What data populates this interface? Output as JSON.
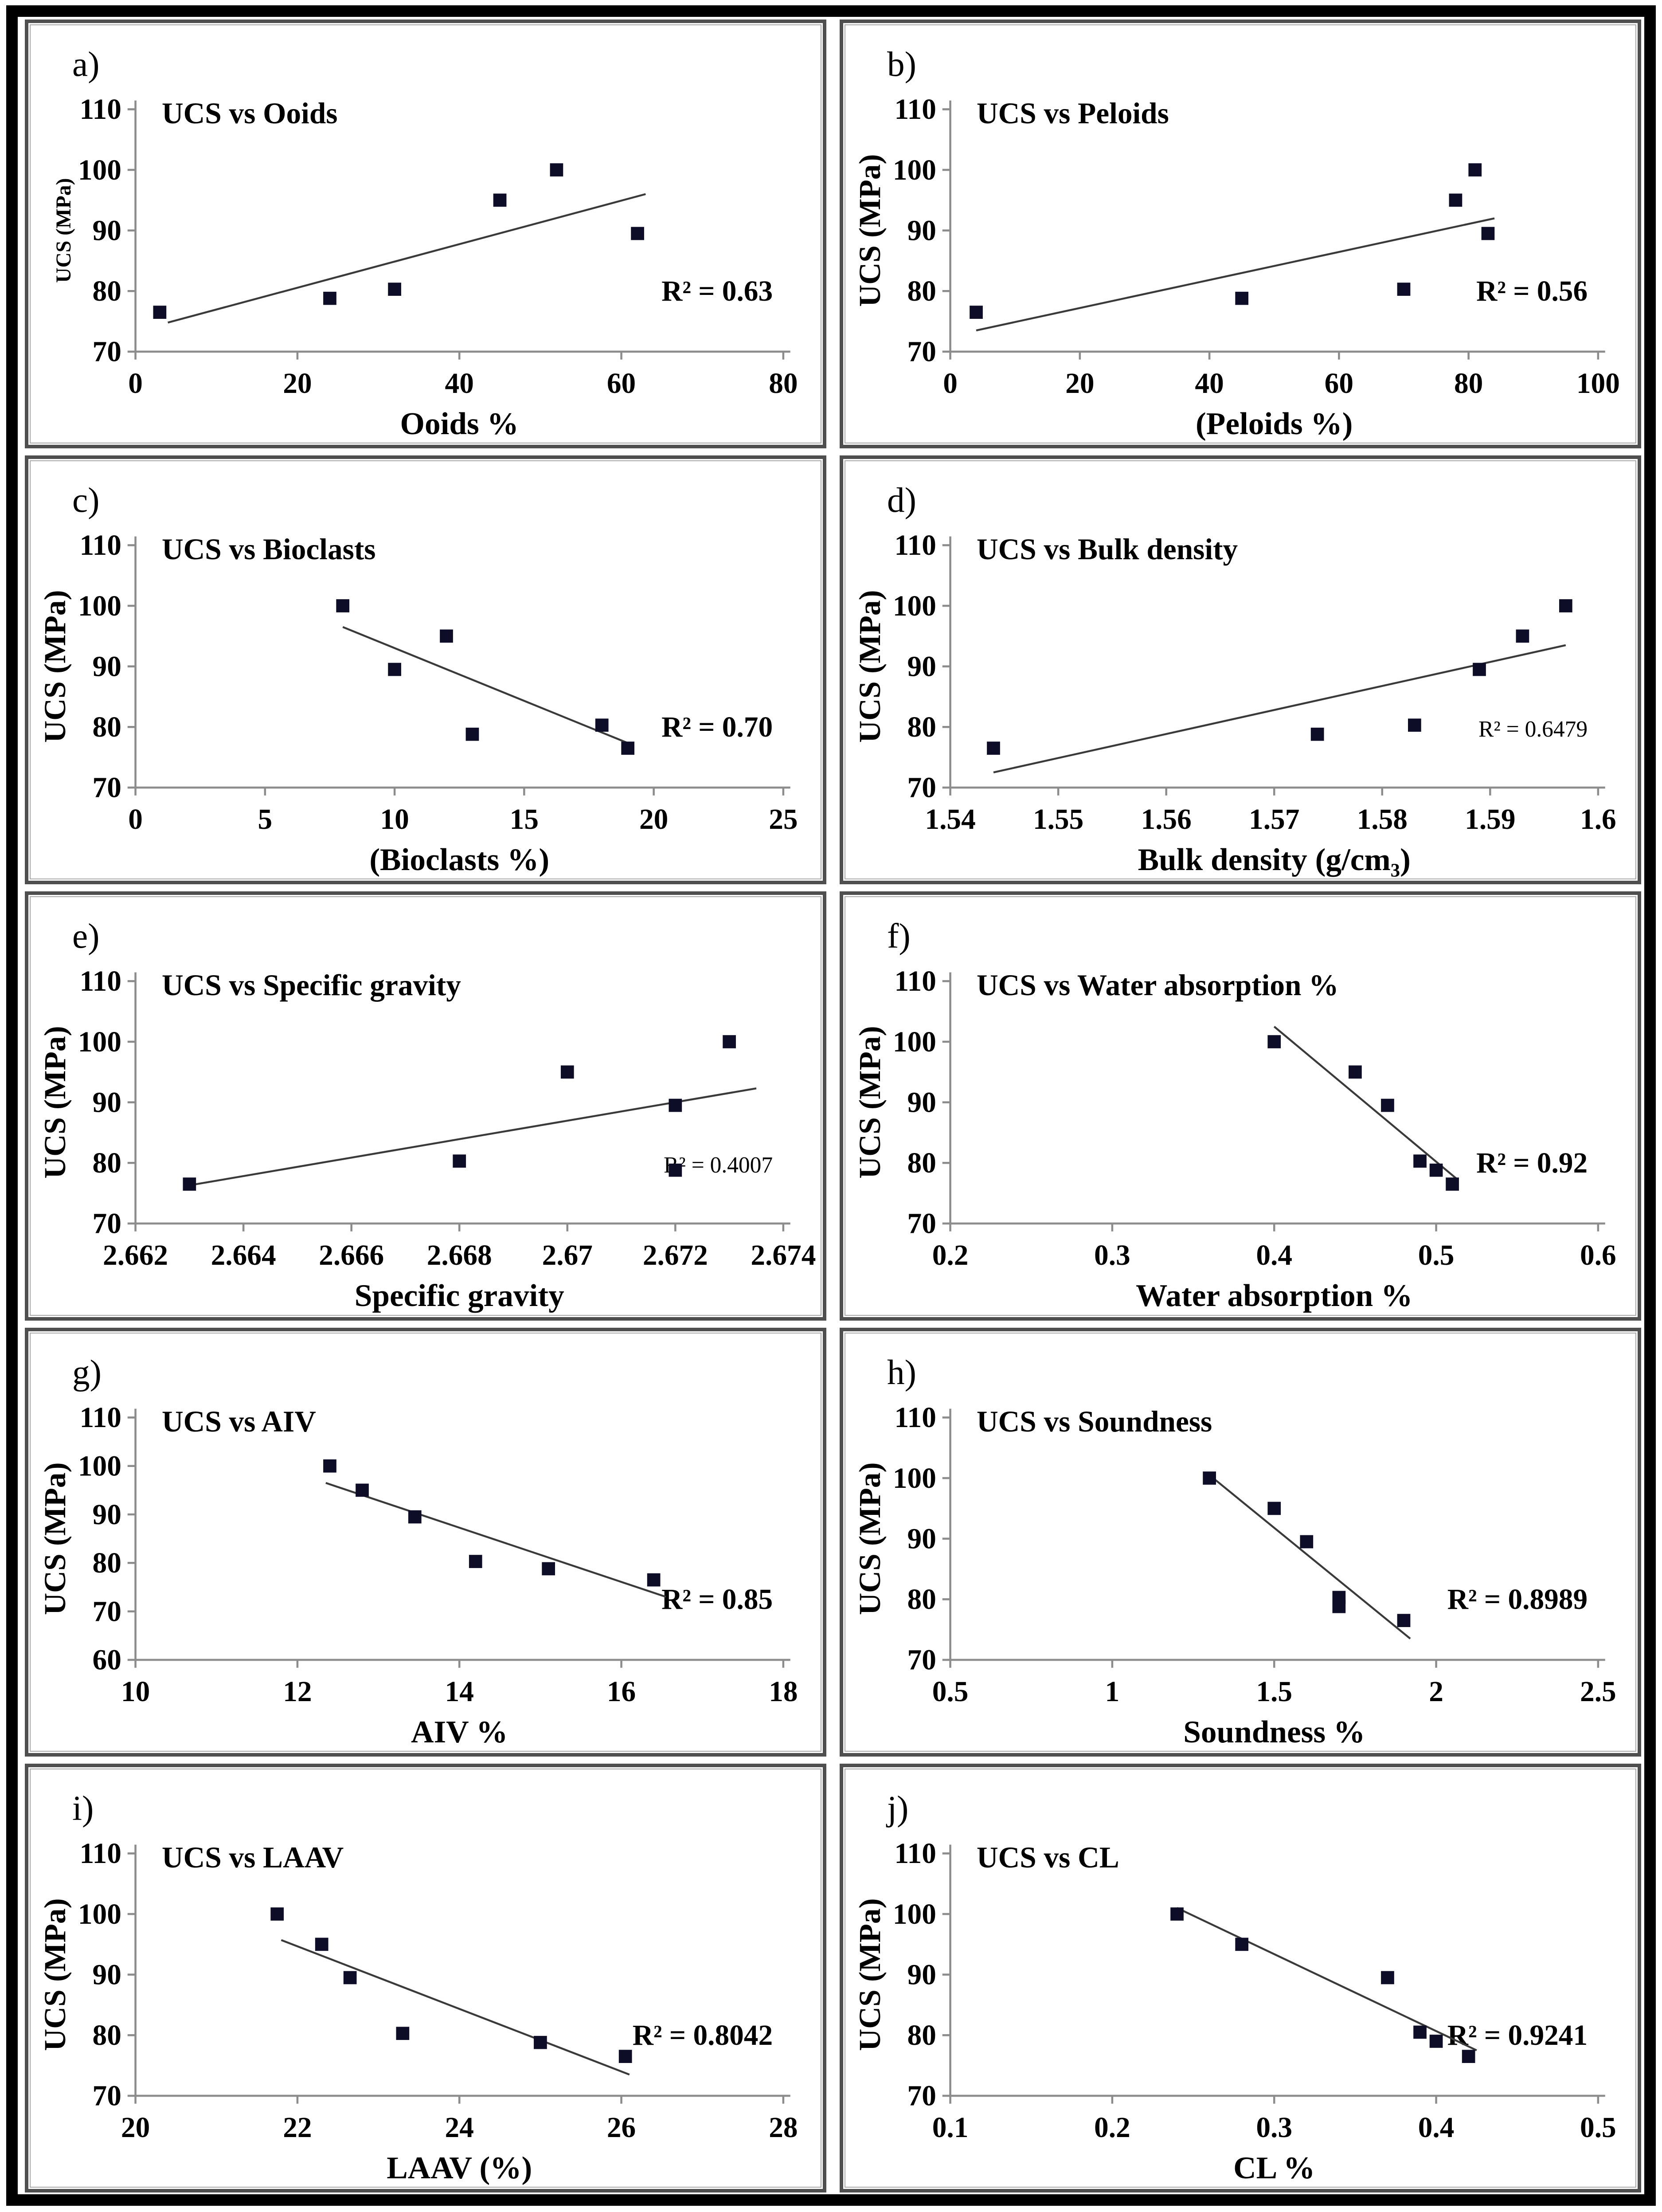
{
  "figure": {
    "description": "Correlation scatter plots of UCS versus petrographic and physico-mechanical properties",
    "outer_border_color": "#000000",
    "panel_border_color": "#4f4f4f",
    "background_color": "#ffffff"
  },
  "colors": {
    "point": "#0d0d28",
    "trendline": "#3a3a3a",
    "axis": "#8c8c8c",
    "text": "#000000"
  },
  "chart_data": [
    {
      "type": "scatter",
      "letter": "a)",
      "panel": "a",
      "title": "UCS vs Ooids",
      "xlabel": "Ooids %",
      "ylabel": "UCS (MPa)",
      "annotation": "R² = 0.63",
      "xlim": [
        0,
        80
      ],
      "xticks": [
        "0",
        "20",
        "40",
        "60",
        "80"
      ],
      "ylim": [
        70,
        110
      ],
      "yticks": [
        "70",
        "80",
        "90",
        "100",
        "110"
      ],
      "x": [
        3,
        24,
        32,
        45,
        52,
        62
      ],
      "y": [
        76.5,
        78.8,
        80.3,
        95,
        100,
        89.5
      ],
      "trendline": [
        4,
        74.8,
        63,
        96
      ],
      "grid": false,
      "legend": "none",
      "ylabel_small": true
    },
    {
      "type": "scatter",
      "letter": "b)",
      "panel": "b",
      "title": "UCS vs Peloids",
      "xlabel": "(Peloids %)",
      "ylabel": "UCS (MPa)",
      "annotation": "R² = 0.56",
      "xlim": [
        0,
        100
      ],
      "xticks": [
        "0",
        "20",
        "40",
        "60",
        "80",
        "100"
      ],
      "ylim": [
        70,
        110
      ],
      "yticks": [
        "70",
        "80",
        "90",
        "100",
        "110"
      ],
      "x": [
        4,
        45,
        70,
        78,
        81,
        83
      ],
      "y": [
        76.5,
        78.8,
        80.3,
        95,
        100,
        89.5
      ],
      "trendline": [
        4,
        73.5,
        84,
        92
      ],
      "grid": false,
      "legend": "none"
    },
    {
      "type": "scatter",
      "letter": "c)",
      "panel": "c",
      "title": "UCS vs Bioclasts",
      "xlabel": "(Bioclasts %)",
      "ylabel": "UCS (MPa)",
      "annotation": "R² = 0.70",
      "xlim": [
        0,
        25
      ],
      "xticks": [
        "0",
        "5",
        "10",
        "15",
        "20",
        "25"
      ],
      "ylim": [
        70,
        110
      ],
      "yticks": [
        "70",
        "80",
        "90",
        "100",
        "110"
      ],
      "x": [
        8,
        10,
        12,
        13,
        18,
        19
      ],
      "y": [
        100,
        89.5,
        95,
        78.8,
        80.3,
        76.5
      ],
      "trendline": [
        8,
        96.5,
        19.2,
        77
      ],
      "grid": false,
      "legend": "none"
    },
    {
      "type": "scatter",
      "letter": "d)",
      "panel": "d",
      "title": "UCS vs Bulk density",
      "xlabel": "Bulk density (g/cm₃)",
      "ylabel": "UCS (MPa)",
      "annotation": "R² = 0.6479",
      "xlim": [
        1.54,
        1.6
      ],
      "xticks": [
        "1.54",
        "1.55",
        "1.56",
        "1.57",
        "1.58",
        "1.59",
        "1.6"
      ],
      "ylim": [
        70,
        110
      ],
      "yticks": [
        "70",
        "80",
        "90",
        "100",
        "110"
      ],
      "x": [
        1.544,
        1.574,
        1.583,
        1.589,
        1.593,
        1.597
      ],
      "y": [
        76.5,
        78.8,
        80.3,
        89.5,
        95,
        100
      ],
      "trendline": [
        1.544,
        72.5,
        1.597,
        93.5
      ],
      "grid": false,
      "legend": "none",
      "r2_small": true
    },
    {
      "type": "scatter",
      "letter": "e)",
      "panel": "e",
      "title": "UCS vs Specific gravity",
      "xlabel": "Specific gravity",
      "ylabel": "UCS (MPa)",
      "annotation": "R² = 0.4007",
      "xlim": [
        2.662,
        2.674
      ],
      "xticks": [
        "2.662",
        "2.664",
        "2.666",
        "2.668",
        "2.67",
        "2.672",
        "2.674"
      ],
      "ylim": [
        70,
        110
      ],
      "yticks": [
        "70",
        "80",
        "90",
        "100",
        "110"
      ],
      "x": [
        2.663,
        2.668,
        2.67,
        2.672,
        2.672,
        2.673
      ],
      "y": [
        76.5,
        80.3,
        95,
        89.5,
        78.8,
        100
      ],
      "trendline": [
        2.663,
        76.3,
        2.6735,
        92.3
      ],
      "grid": false,
      "legend": "none",
      "r2_small": true
    },
    {
      "type": "scatter",
      "letter": "f)",
      "panel": "f",
      "title": "UCS vs Water absorption %",
      "xlabel": "Water absorption %",
      "ylabel": "UCS (MPa)",
      "annotation": "R² = 0.92",
      "xlim": [
        0.2,
        0.6
      ],
      "xticks": [
        "0.2",
        "0.3",
        "0.4",
        "0.5",
        "0.6"
      ],
      "ylim": [
        70,
        110
      ],
      "yticks": [
        "70",
        "80",
        "90",
        "100",
        "110"
      ],
      "x": [
        0.4,
        0.45,
        0.47,
        0.49,
        0.5,
        0.51
      ],
      "y": [
        100,
        95,
        89.5,
        80.3,
        78.8,
        76.5
      ],
      "trendline": [
        0.4,
        102.5,
        0.513,
        77.3
      ],
      "grid": false,
      "legend": "none"
    },
    {
      "type": "scatter",
      "letter": "g)",
      "panel": "g",
      "title": "UCS vs AIV",
      "xlabel": "AIV %",
      "ylabel": "UCS (MPa)",
      "annotation": "R² = 0.85",
      "xlim": [
        10,
        18
      ],
      "xticks": [
        "10",
        "12",
        "14",
        "16",
        "18"
      ],
      "ylim": [
        60,
        110
      ],
      "yticks": [
        "60",
        "70",
        "80",
        "90",
        "100",
        "110"
      ],
      "x": [
        12.4,
        12.8,
        13.45,
        14.2,
        15.1,
        16.4
      ],
      "y": [
        100,
        95,
        89.5,
        80.3,
        78.8,
        76.5
      ],
      "trendline": [
        12.35,
        96.5,
        16.55,
        73
      ],
      "grid": false,
      "legend": "none"
    },
    {
      "type": "scatter",
      "letter": "h)",
      "panel": "h",
      "title": "UCS vs Soundness",
      "xlabel": "Soundness %",
      "ylabel": "UCS (MPa)",
      "annotation": "R² = 0.8989",
      "xlim": [
        0.5,
        2.5
      ],
      "xticks": [
        "0.5",
        "1",
        "1.5",
        "2",
        "2.5"
      ],
      "ylim": [
        70,
        110
      ],
      "yticks": [
        "70",
        "80",
        "90",
        "100",
        "110"
      ],
      "x": [
        1.3,
        1.5,
        1.6,
        1.7,
        1.7,
        1.9
      ],
      "y": [
        100,
        95,
        89.5,
        80.3,
        78.8,
        76.5
      ],
      "trendline": [
        1.3,
        100.5,
        1.92,
        73.5
      ],
      "grid": false,
      "legend": "none"
    },
    {
      "type": "scatter",
      "letter": "i)",
      "panel": "i",
      "title": "UCS vs LAAV",
      "xlabel": "LAAV (%)",
      "ylabel": "UCS (MPa)",
      "annotation": "R² = 0.8042",
      "xlim": [
        20,
        28
      ],
      "xticks": [
        "20",
        "22",
        "24",
        "26",
        "28"
      ],
      "ylim": [
        70,
        110
      ],
      "yticks": [
        "70",
        "80",
        "90",
        "100",
        "110"
      ],
      "x": [
        21.75,
        22.3,
        22.65,
        23.3,
        25,
        26.05
      ],
      "y": [
        100,
        95,
        89.5,
        80.3,
        78.8,
        76.5
      ],
      "trendline": [
        21.8,
        95.7,
        26.1,
        73.5
      ],
      "grid": false,
      "legend": "none"
    },
    {
      "type": "scatter",
      "letter": "j)",
      "panel": "j",
      "title": "UCS vs CL",
      "xlabel": "CL %",
      "ylabel": "UCS (MPa)",
      "annotation": "R² = 0.9241",
      "xlim": [
        0.1,
        0.5
      ],
      "xticks": [
        "0.1",
        "0.2",
        "0.3",
        "0.4",
        "0.5"
      ],
      "ylim": [
        70,
        110
      ],
      "yticks": [
        "70",
        "80",
        "90",
        "100",
        "110"
      ],
      "x": [
        0.24,
        0.28,
        0.37,
        0.39,
        0.4,
        0.42
      ],
      "y": [
        100,
        95,
        89.5,
        80.5,
        79,
        76.5
      ],
      "trendline": [
        0.24,
        101,
        0.425,
        77.5
      ],
      "grid": false,
      "legend": "none"
    }
  ]
}
